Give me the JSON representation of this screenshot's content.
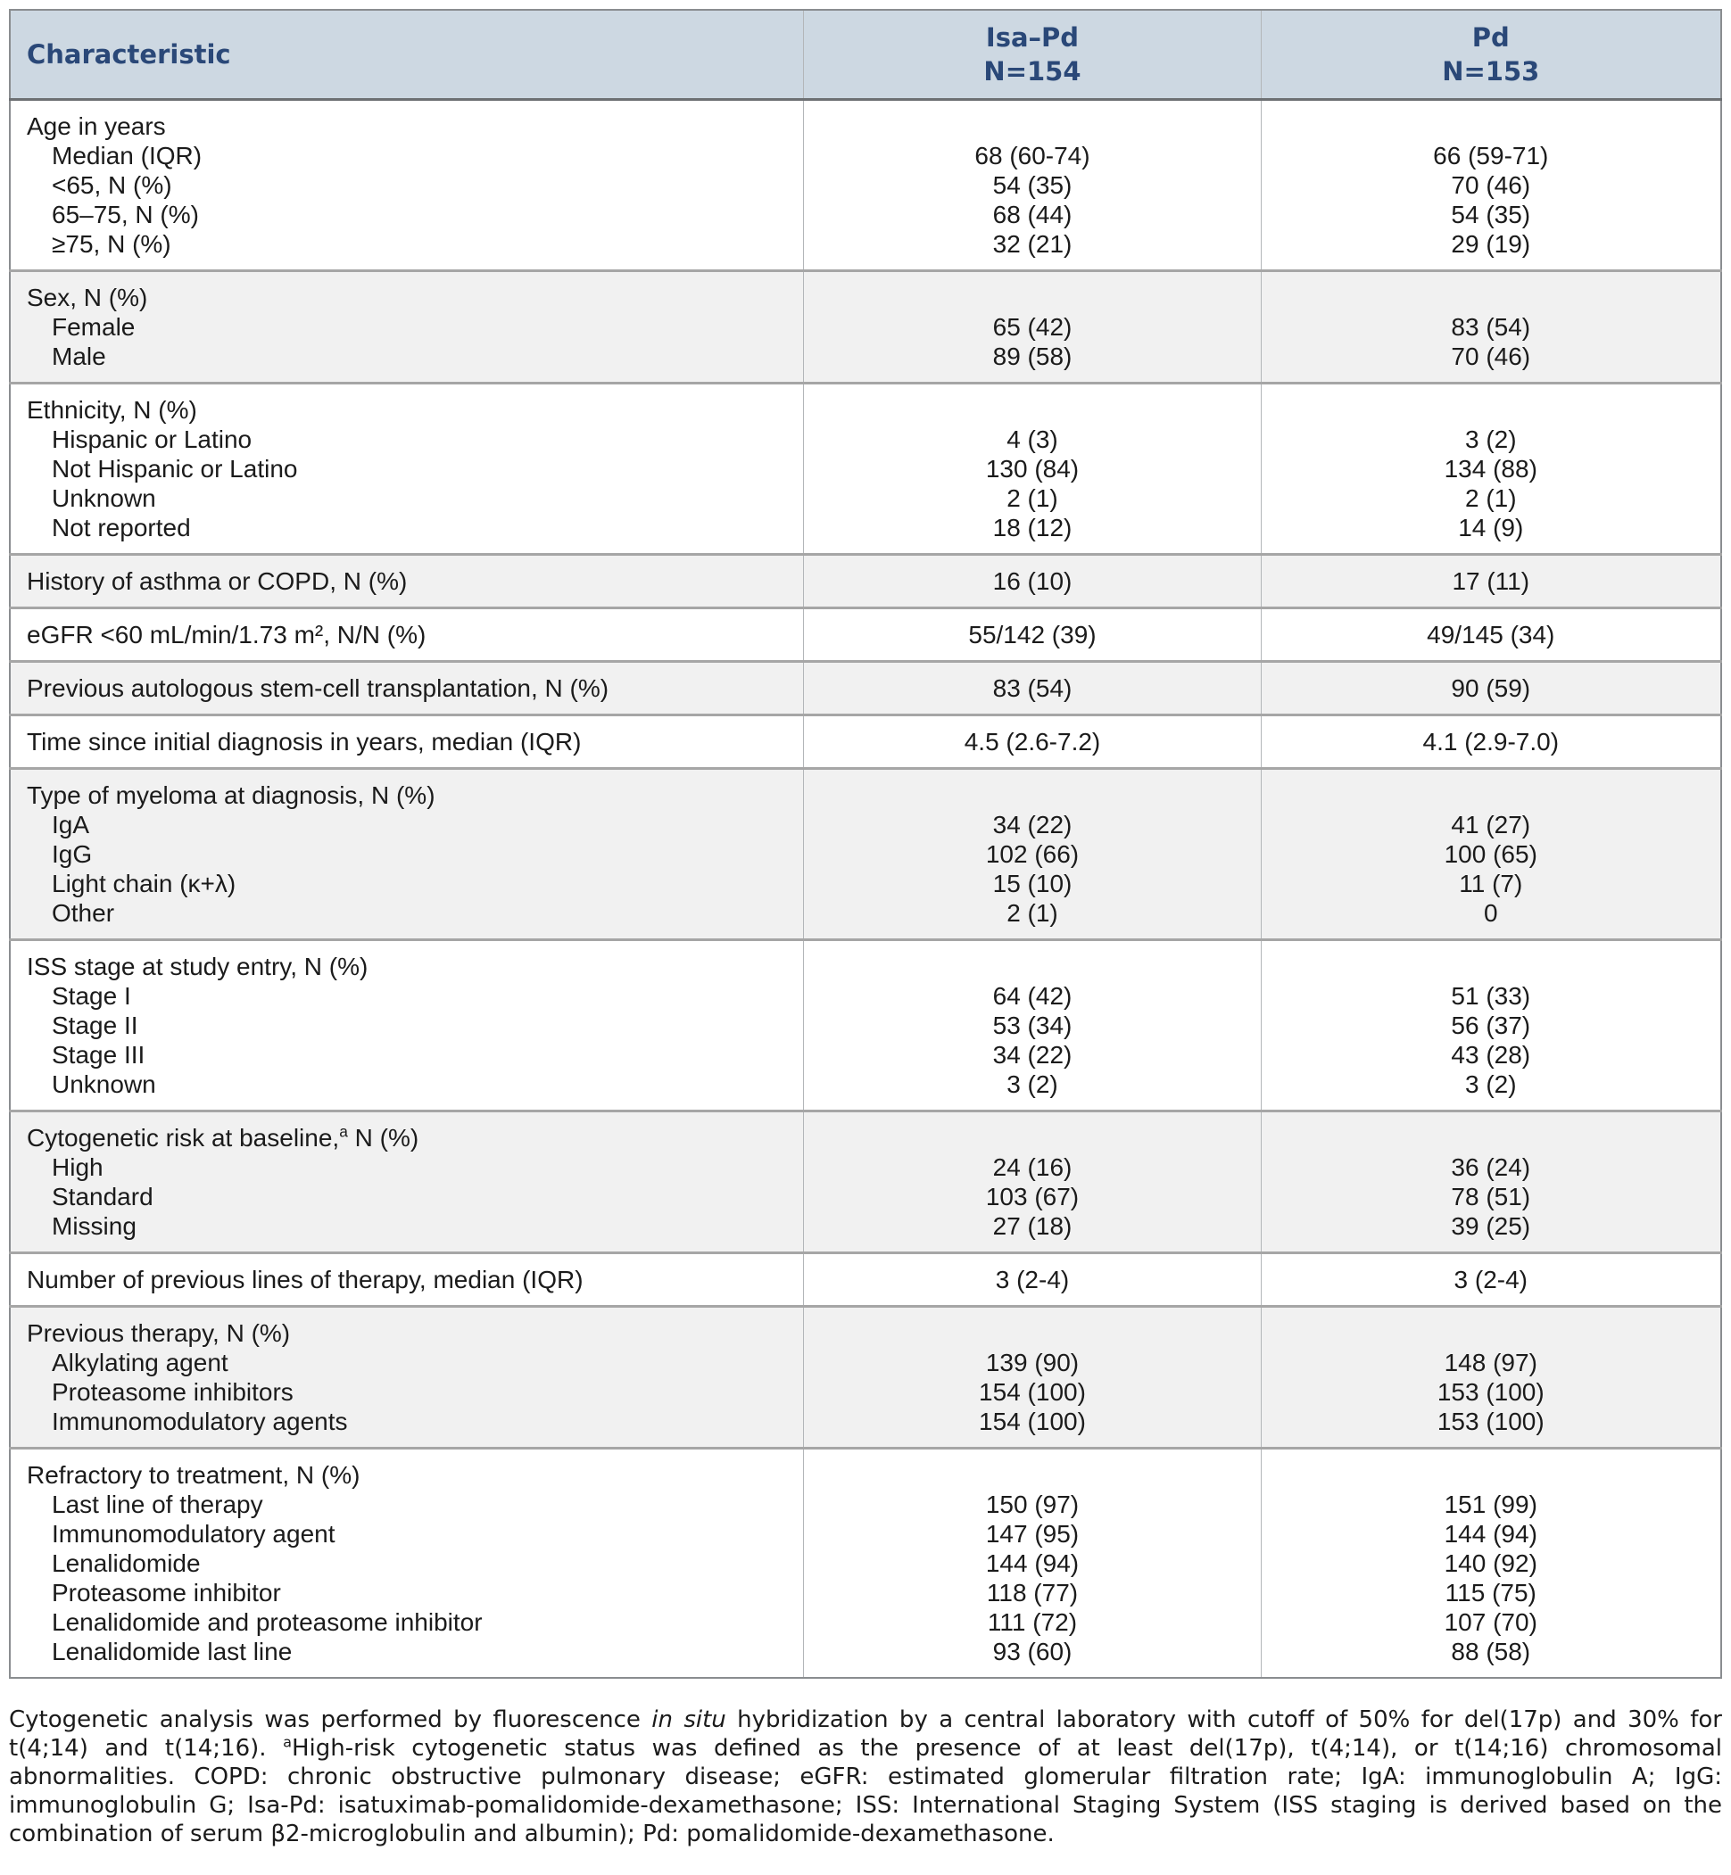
{
  "colors": {
    "header_bg": "#cdd8e2",
    "header_text": "#2a4878",
    "row_shade": "#f1f1f1",
    "border_outer": "#8a8d90",
    "border_section": "#a6a6a6",
    "body_text": "#1b1b1b"
  },
  "table": {
    "columns": [
      {
        "label": "Characteristic"
      },
      {
        "label": "Isa–Pd",
        "sublabel": "N=154"
      },
      {
        "label": "Pd",
        "sublabel": "N=153"
      }
    ],
    "sections": [
      {
        "shaded": false,
        "rows": [
          {
            "label": "Age in years"
          },
          {
            "label": "Median (IQR)",
            "indent": true,
            "isa": "68 (60-74)",
            "pd": "66 (59-71)"
          },
          {
            "label": "<65, N (%)",
            "indent": true,
            "isa": "54 (35)",
            "pd": "70 (46)"
          },
          {
            "label": "65–75, N (%)",
            "indent": true,
            "isa": "68 (44)",
            "pd": "54 (35)"
          },
          {
            "label": "≥75, N (%)",
            "indent": true,
            "isa": "32 (21)",
            "pd": "29 (19)"
          }
        ]
      },
      {
        "shaded": true,
        "rows": [
          {
            "label": "Sex, N (%)"
          },
          {
            "label": "Female",
            "indent": true,
            "isa": "65 (42)",
            "pd": "83 (54)"
          },
          {
            "label": "Male",
            "indent": true,
            "isa": "89 (58)",
            "pd": "70 (46)"
          }
        ]
      },
      {
        "shaded": false,
        "rows": [
          {
            "label": "Ethnicity, N (%)"
          },
          {
            "label": "Hispanic or Latino",
            "indent": true,
            "isa": "4 (3)",
            "pd": "3 (2)"
          },
          {
            "label": "Not Hispanic or Latino",
            "indent": true,
            "isa": "130 (84)",
            "pd": "134 (88)"
          },
          {
            "label": "Unknown",
            "indent": true,
            "isa": "2 (1)",
            "pd": "2 (1)"
          },
          {
            "label": "Not reported",
            "indent": true,
            "isa": "18 (12)",
            "pd": "14 (9)"
          }
        ]
      },
      {
        "shaded": true,
        "rows": [
          {
            "label": "History of asthma or COPD, N (%)",
            "isa": "16 (10)",
            "pd": "17 (11)"
          }
        ]
      },
      {
        "shaded": false,
        "rows": [
          {
            "label": "eGFR <60 mL/min/1.73 m², N/N (%)",
            "isa": "55/142 (39)",
            "pd": "49/145 (34)"
          }
        ]
      },
      {
        "shaded": true,
        "rows": [
          {
            "label": "Previous autologous stem-cell transplantation, N (%)",
            "isa": "83 (54)",
            "pd": "90 (59)"
          }
        ]
      },
      {
        "shaded": false,
        "rows": [
          {
            "label": "Time since initial diagnosis in years, median (IQR)",
            "isa": "4.5 (2.6-7.2)",
            "pd": "4.1 (2.9-7.0)"
          }
        ]
      },
      {
        "shaded": true,
        "rows": [
          {
            "label": "Type of myeloma at diagnosis, N (%)"
          },
          {
            "label": "IgA",
            "indent": true,
            "isa": "34 (22)",
            "pd": "41 (27)"
          },
          {
            "label": "IgG",
            "indent": true,
            "isa": "102 (66)",
            "pd": "100 (65)"
          },
          {
            "label": "Light chain (κ+λ)",
            "indent": true,
            "isa": "15 (10)",
            "pd": "11 (7)"
          },
          {
            "label": "Other",
            "indent": true,
            "isa": "2 (1)",
            "pd": "0"
          }
        ]
      },
      {
        "shaded": false,
        "rows": [
          {
            "label": "ISS stage at study entry, N (%)"
          },
          {
            "label": "Stage I",
            "indent": true,
            "isa": "64 (42)",
            "pd": "51 (33)"
          },
          {
            "label": "Stage II",
            "indent": true,
            "isa": "53 (34)",
            "pd": "56 (37)"
          },
          {
            "label": "Stage III",
            "indent": true,
            "isa": "34 (22)",
            "pd": "43 (28)"
          },
          {
            "label": "Unknown",
            "indent": true,
            "isa": "3 (2)",
            "pd": "3 (2)"
          }
        ]
      },
      {
        "shaded": true,
        "rows": [
          {
            "label": "Cytogenetic risk at baseline,",
            "sup": "a",
            "label_after": " N (%)"
          },
          {
            "label": "High",
            "indent": true,
            "isa": "24 (16)",
            "pd": "36 (24)"
          },
          {
            "label": "Standard",
            "indent": true,
            "isa": "103 (67)",
            "pd": "78 (51)"
          },
          {
            "label": "Missing",
            "indent": true,
            "isa": "27 (18)",
            "pd": "39 (25)"
          }
        ]
      },
      {
        "shaded": false,
        "rows": [
          {
            "label": "Number of previous lines of therapy, median (IQR)",
            "isa": "3 (2-4)",
            "pd": "3 (2-4)"
          }
        ]
      },
      {
        "shaded": true,
        "rows": [
          {
            "label": "Previous therapy, N (%)"
          },
          {
            "label": "Alkylating agent",
            "indent": true,
            "isa": "139 (90)",
            "pd": "148 (97)"
          },
          {
            "label": "Proteasome inhibitors",
            "indent": true,
            "isa": "154 (100)",
            "pd": "153 (100)"
          },
          {
            "label": "Immunomodulatory agents",
            "indent": true,
            "isa": "154 (100)",
            "pd": "153 (100)"
          }
        ]
      },
      {
        "shaded": false,
        "rows": [
          {
            "label": "Refractory to treatment, N (%)"
          },
          {
            "label": "Last line of therapy",
            "indent": true,
            "isa": "150 (97)",
            "pd": "151 (99)"
          },
          {
            "label": "Immunomodulatory agent",
            "indent": true,
            "isa": "147 (95)",
            "pd": "144 (94)"
          },
          {
            "label": "Lenalidomide",
            "indent": true,
            "isa": "144 (94)",
            "pd": "140 (92)"
          },
          {
            "label": "Proteasome inhibitor",
            "indent": true,
            "isa": "118 (77)",
            "pd": "115 (75)"
          },
          {
            "label": "Lenalidomide and proteasome inhibitor",
            "indent": true,
            "isa": "111 (72)",
            "pd": "107 (70)"
          },
          {
            "label": "Lenalidomide last line",
            "indent": true,
            "isa": "93 (60)",
            "pd": "88 (58)"
          }
        ]
      }
    ]
  },
  "footnote": {
    "part1": "Cytogenetic analysis was performed by fluorescence ",
    "italic": "in situ",
    "part2": " hybridization by a central laboratory with cutoff of 50% for del(17p) and 30% for t(4;14) and t(14;16). ",
    "sup": "a",
    "part3": "High-risk cytogenetic status was defined as the presence of at least del(17p), t(4;14), or t(14;16) chromosomal abnormalities. COPD: chronic obstructive pulmonary disease; eGFR: estimated glomerular filtration rate; IgA: immunoglobulin A; IgG: immunoglobulin G; Isa-Pd: isatuximab-pomalidomide-dexamethasone; ISS: International Staging System (ISS staging is derived based on the combination of serum β2-microglobulin and albumin); Pd: pomalidomide-dexamethasone."
  }
}
